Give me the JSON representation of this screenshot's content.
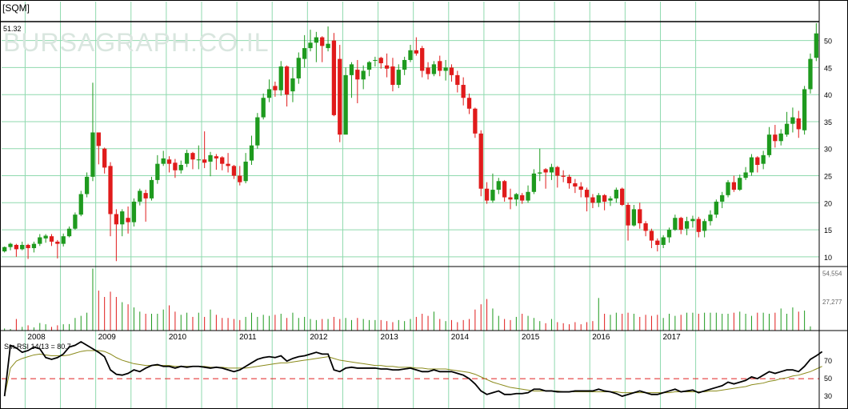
{
  "ticker": "[SQM]",
  "watermark": "BURSAGRAPH.CO.IL",
  "last_price_label": "51.32",
  "colors": {
    "background": "#ffffff",
    "grid": "#8fd9ae",
    "up": "#1e9a1e",
    "down": "#e01b1b",
    "rsi_line": "#000000",
    "rsi_ma": "#8a8a1a",
    "rsi_ref": "#e02020"
  },
  "chart_data": {
    "type": "candlestick",
    "interval": "monthly",
    "x_tick_labels": [
      "2008",
      "2009",
      "2010",
      "2011",
      "2012",
      "2013",
      "2014",
      "2015",
      "2016",
      "2017"
    ],
    "price_axis": {
      "ticks": [
        10,
        15,
        20,
        25,
        30,
        35,
        40,
        45,
        50
      ],
      "ylim": [
        8.2,
        53.5
      ],
      "reference_line": 51.32
    },
    "volume_axis": {
      "tick_labels": [
        "54,554",
        "27,277"
      ],
      "ticks": [
        54554,
        27277
      ],
      "ylim": [
        0,
        59400
      ]
    },
    "rsi_axis": {
      "label": "Sm.RSI 14/13 = 80.7",
      "ticks": [
        30,
        50,
        70
      ],
      "ylim": [
        20,
        92
      ],
      "reference_line": 50
    },
    "candles": [
      [
        11.0,
        11.8,
        11.9,
        10.8
      ],
      [
        11.8,
        12.4,
        12.6,
        11.2
      ],
      [
        12.2,
        11.4,
        12.4,
        10.0
      ],
      [
        11.4,
        12.2,
        12.8,
        11.2
      ],
      [
        12.2,
        11.6,
        12.4,
        9.6
      ],
      [
        11.6,
        12.4,
        12.8,
        10.8
      ],
      [
        12.4,
        13.6,
        14.2,
        12.0
      ],
      [
        13.4,
        13.9,
        14.2,
        12.6
      ],
      [
        13.8,
        12.8,
        14.2,
        12.0
      ],
      [
        12.8,
        12.4,
        13.1,
        9.7
      ],
      [
        12.4,
        13.8,
        14.3,
        11.9
      ],
      [
        13.8,
        15.2,
        15.6,
        13.6
      ],
      [
        15.2,
        17.8,
        18.2,
        15.0
      ],
      [
        17.8,
        21.6,
        22.2,
        17.5
      ],
      [
        21.6,
        24.8,
        25.6,
        21.0
      ],
      [
        24.8,
        33.0,
        42.2,
        24.0
      ],
      [
        33.0,
        30.5,
        31.9,
        27.1
      ],
      [
        30.0,
        26.5,
        30.2,
        25.4
      ],
      [
        26.8,
        17.9,
        27.5,
        13.8
      ],
      [
        17.9,
        16.0,
        18.8,
        9.2
      ],
      [
        16.0,
        18.4,
        18.8,
        13.8
      ],
      [
        17.2,
        16.4,
        19.3,
        14.3
      ],
      [
        16.4,
        20.2,
        20.8,
        15.6
      ],
      [
        20.2,
        22.2,
        22.6,
        19.5
      ],
      [
        21.8,
        20.8,
        22.4,
        16.5
      ],
      [
        20.8,
        24.2,
        24.8,
        20.4
      ],
      [
        24.2,
        27.2,
        28.8,
        23.5
      ],
      [
        27.2,
        28.2,
        29.6,
        26.8
      ],
      [
        28.0,
        27.2,
        28.6,
        25.6
      ],
      [
        27.4,
        26.0,
        28.1,
        24.6
      ],
      [
        26.0,
        27.0,
        27.8,
        25.4
      ],
      [
        27.2,
        29.2,
        29.8,
        26.6
      ],
      [
        29.2,
        28.0,
        29.4,
        26.2
      ],
      [
        28.0,
        28.0,
        30.6,
        26.2
      ],
      [
        28.0,
        27.4,
        33.2,
        26.4
      ],
      [
        27.6,
        28.8,
        29.4,
        24.9
      ],
      [
        28.6,
        28.2,
        29.0,
        26.1
      ],
      [
        28.4,
        27.2,
        28.6,
        26.0
      ],
      [
        27.2,
        26.8,
        29.2,
        25.6
      ],
      [
        26.8,
        25.0,
        27.0,
        24.4
      ],
      [
        25.0,
        23.8,
        26.8,
        23.2
      ],
      [
        24.0,
        27.6,
        29.2,
        23.6
      ],
      [
        27.8,
        30.6,
        32.4,
        27.0
      ],
      [
        30.6,
        35.8,
        36.6,
        30.0
      ],
      [
        35.8,
        39.4,
        40.2,
        35.4
      ],
      [
        39.4,
        41.0,
        42.8,
        38.6
      ],
      [
        41.6,
        40.8,
        42.4,
        39.6
      ],
      [
        40.8,
        45.2,
        46.2,
        39.8
      ],
      [
        45.2,
        40.0,
        45.4,
        37.8
      ],
      [
        40.6,
        43.0,
        45.0,
        38.6
      ],
      [
        43.0,
        46.8,
        47.8,
        42.0
      ],
      [
        46.6,
        48.6,
        51.0,
        45.0
      ],
      [
        48.6,
        49.6,
        52.0,
        48.0
      ],
      [
        49.6,
        50.6,
        51.6,
        46.0
      ],
      [
        50.6,
        49.0,
        50.8,
        46.0
      ],
      [
        48.6,
        49.4,
        52.6,
        48.0
      ],
      [
        50.0,
        36.2,
        51.4,
        36.0
      ],
      [
        46.6,
        32.6,
        49.2,
        31.2
      ],
      [
        32.6,
        43.6,
        45.0,
        33.0
      ],
      [
        43.6,
        45.6,
        46.0,
        39.4
      ],
      [
        44.6,
        42.8,
        46.4,
        38.4
      ],
      [
        42.8,
        44.4,
        45.4,
        41.0
      ],
      [
        44.6,
        46.0,
        46.2,
        43.4
      ],
      [
        46.4,
        46.4,
        47.0,
        45.2
      ],
      [
        46.8,
        45.8,
        47.0,
        44.8
      ],
      [
        45.4,
        44.8,
        47.6,
        43.2
      ],
      [
        45.2,
        41.8,
        46.8,
        40.6
      ],
      [
        41.8,
        44.6,
        45.6,
        41.2
      ],
      [
        44.6,
        46.4,
        47.0,
        43.6
      ],
      [
        46.4,
        48.2,
        49.2,
        46.0
      ],
      [
        48.2,
        47.6,
        50.6,
        47.2
      ],
      [
        48.6,
        44.4,
        49.0,
        43.2
      ],
      [
        45.0,
        43.8,
        46.0,
        42.8
      ],
      [
        43.8,
        45.6,
        46.2,
        43.4
      ],
      [
        46.2,
        44.4,
        47.2,
        43.4
      ],
      [
        44.4,
        45.0,
        46.4,
        42.6
      ],
      [
        45.0,
        43.6,
        45.6,
        42.4
      ],
      [
        43.6,
        41.8,
        44.4,
        40.4
      ],
      [
        41.8,
        39.4,
        43.2,
        38.0
      ],
      [
        39.4,
        37.4,
        40.2,
        36.4
      ],
      [
        37.4,
        32.8,
        37.6,
        32.0
      ],
      [
        32.8,
        22.6,
        33.4,
        21.2
      ],
      [
        22.6,
        20.4,
        23.8,
        19.8
      ],
      [
        20.4,
        22.4,
        25.4,
        20.0
      ],
      [
        22.4,
        24.0,
        24.6,
        21.6
      ],
      [
        24.0,
        21.0,
        24.2,
        20.2
      ],
      [
        21.0,
        20.6,
        22.6,
        18.8
      ],
      [
        20.6,
        21.6,
        21.8,
        19.4
      ],
      [
        21.4,
        20.4,
        21.8,
        19.8
      ],
      [
        20.4,
        22.0,
        23.2,
        20.0
      ],
      [
        22.0,
        25.4,
        26.2,
        21.6
      ],
      [
        25.4,
        25.6,
        30.0,
        24.0
      ],
      [
        26.2,
        25.6,
        26.4,
        22.6
      ],
      [
        25.6,
        26.6,
        27.2,
        24.2
      ],
      [
        26.6,
        25.0,
        26.8,
        22.8
      ],
      [
        25.0,
        24.8,
        26.0,
        23.8
      ],
      [
        24.8,
        23.6,
        25.2,
        22.6
      ],
      [
        23.6,
        23.0,
        24.4,
        21.8
      ],
      [
        23.0,
        22.4,
        23.8,
        21.0
      ],
      [
        22.4,
        21.0,
        22.8,
        18.4
      ],
      [
        21.0,
        20.0,
        21.6,
        19.0
      ],
      [
        20.0,
        21.4,
        21.8,
        19.2
      ],
      [
        21.4,
        20.2,
        21.6,
        18.6
      ],
      [
        20.4,
        20.8,
        21.2,
        19.4
      ],
      [
        20.8,
        22.4,
        22.8,
        20.0
      ],
      [
        22.6,
        19.6,
        22.8,
        19.4
      ],
      [
        19.6,
        15.8,
        20.0,
        13.0
      ],
      [
        15.8,
        18.8,
        19.6,
        15.6
      ],
      [
        18.8,
        16.2,
        20.0,
        15.2
      ],
      [
        16.2,
        14.8,
        16.6,
        13.8
      ],
      [
        14.8,
        13.0,
        15.2,
        11.6
      ],
      [
        13.0,
        12.2,
        13.4,
        11.0
      ],
      [
        12.2,
        13.6,
        14.0,
        11.6
      ],
      [
        13.6,
        15.0,
        15.4,
        12.6
      ],
      [
        15.0,
        17.2,
        17.8,
        14.8
      ],
      [
        17.2,
        15.0,
        17.4,
        14.2
      ],
      [
        15.2,
        16.6,
        17.4,
        14.0
      ],
      [
        16.6,
        17.0,
        17.6,
        15.4
      ],
      [
        17.0,
        14.6,
        17.4,
        13.6
      ],
      [
        14.8,
        16.6,
        17.0,
        13.6
      ],
      [
        16.6,
        17.8,
        18.6,
        15.8
      ],
      [
        17.8,
        20.2,
        20.6,
        17.2
      ],
      [
        20.2,
        21.4,
        22.0,
        19.0
      ],
      [
        21.4,
        23.8,
        24.2,
        21.0
      ],
      [
        23.8,
        22.4,
        25.0,
        22.0
      ],
      [
        22.4,
        24.6,
        25.2,
        22.2
      ],
      [
        24.6,
        25.6,
        26.6,
        24.2
      ],
      [
        25.6,
        28.4,
        29.0,
        25.0
      ],
      [
        28.4,
        27.0,
        28.6,
        25.6
      ],
      [
        27.2,
        28.8,
        29.6,
        26.2
      ],
      [
        28.8,
        32.6,
        34.0,
        28.4
      ],
      [
        32.6,
        31.4,
        34.4,
        30.2
      ],
      [
        31.4,
        32.8,
        33.6,
        30.6
      ],
      [
        32.6,
        34.6,
        36.8,
        32.2
      ],
      [
        34.6,
        35.8,
        37.6,
        33.0
      ],
      [
        35.6,
        33.6,
        37.0,
        32.0
      ],
      [
        33.4,
        41.0,
        41.6,
        32.6
      ],
      [
        41.0,
        46.6,
        47.6,
        40.2
      ],
      [
        46.8,
        51.32,
        53.2,
        46.2
      ]
    ],
    "volume": [
      2000,
      1500,
      11000,
      3500,
      5000,
      3000,
      7200,
      6000,
      3500,
      5000,
      6000,
      6200,
      12000,
      14000,
      17000,
      59000,
      38000,
      32000,
      37000,
      32000,
      27000,
      25000,
      22000,
      18000,
      16000,
      16000,
      16000,
      20000,
      24000,
      18000,
      15000,
      17000,
      13000,
      17000,
      13000,
      20000,
      15000,
      12000,
      12000,
      11000,
      10000,
      13000,
      17000,
      13000,
      15000,
      14000,
      15000,
      16000,
      12000,
      17000,
      12000,
      13000,
      11000,
      10000,
      11000,
      11000,
      13000,
      11000,
      12000,
      10000,
      12000,
      11000,
      10000,
      10000,
      10000,
      9000,
      8000,
      10000,
      9000,
      11000,
      13000,
      16000,
      14000,
      18000,
      11000,
      9000,
      10000,
      8000,
      10000,
      11000,
      20000,
      25000,
      30000,
      21000,
      14000,
      11000,
      10000,
      13000,
      16000,
      14000,
      12000,
      9000,
      7000,
      11000,
      8000,
      7000,
      6000,
      8000,
      6000,
      8000,
      9000,
      31000,
      16000,
      15000,
      17000,
      16000,
      17000,
      16000,
      13000,
      15000,
      14000,
      15000,
      12000,
      16000,
      14000,
      15000,
      17000,
      17000,
      16000,
      17000,
      17000,
      17000,
      16000,
      16000,
      17000,
      18000,
      16000,
      14000,
      17000,
      17000,
      16000,
      17000,
      21000,
      16000,
      22000,
      18000,
      19000,
      4000
    ],
    "rsi": [
      30,
      88,
      85,
      80,
      82,
      86,
      84,
      74,
      72,
      74,
      78,
      86,
      88,
      92,
      88,
      84,
      80,
      75,
      60,
      55,
      54,
      56,
      60,
      58,
      62,
      65,
      66,
      64,
      64,
      62,
      64,
      63,
      64,
      64,
      63,
      62,
      63,
      62,
      60,
      58,
      60,
      64,
      68,
      72,
      74,
      75,
      74,
      76,
      70,
      73,
      75,
      76,
      78,
      80,
      78,
      78,
      60,
      58,
      62,
      63,
      62,
      62,
      62,
      62,
      61,
      61,
      60,
      60,
      61,
      62,
      60,
      58,
      58,
      60,
      58,
      58,
      58,
      56,
      54,
      50,
      44,
      36,
      32,
      34,
      36,
      32,
      32,
      33,
      33,
      34,
      38,
      38,
      36,
      36,
      35,
      35,
      35,
      36,
      36,
      36,
      36,
      38,
      36,
      35,
      33,
      30,
      32,
      34,
      36,
      34,
      32,
      32,
      34,
      36,
      38,
      35,
      36,
      37,
      34,
      36,
      38,
      40,
      42,
      46,
      44,
      46,
      48,
      52,
      50,
      54,
      58,
      56,
      58,
      60,
      60,
      58,
      64,
      72,
      76,
      80.7
    ],
    "rsi_ma": [
      30,
      62,
      70,
      73,
      75,
      77,
      78,
      77,
      76,
      76,
      76,
      77,
      79,
      81,
      82,
      82,
      82,
      81,
      78,
      74,
      71,
      69,
      67,
      66,
      65,
      65,
      65,
      65,
      65,
      64,
      64,
      64,
      64,
      64,
      64,
      63,
      63,
      63,
      62,
      62,
      62,
      62,
      63,
      64,
      65,
      66,
      67,
      68,
      68,
      69,
      70,
      71,
      72,
      73,
      74,
      75,
      73,
      71,
      70,
      69,
      68,
      67,
      66,
      65,
      65,
      64,
      64,
      63,
      63,
      63,
      62,
      62,
      61,
      61,
      61,
      61,
      60,
      59,
      58,
      57,
      55,
      52,
      49,
      46,
      44,
      42,
      40,
      39,
      38,
      37,
      36,
      36,
      36,
      36,
      36,
      35,
      35,
      35,
      35,
      35,
      35,
      35,
      35,
      35,
      35,
      34,
      34,
      34,
      34,
      34,
      34,
      34,
      34,
      34,
      35,
      35,
      35,
      35,
      35,
      35,
      36,
      36,
      37,
      38,
      39,
      40,
      41,
      43,
      44,
      45,
      47,
      48,
      50,
      51,
      53,
      54,
      56,
      58,
      61,
      64
    ]
  }
}
